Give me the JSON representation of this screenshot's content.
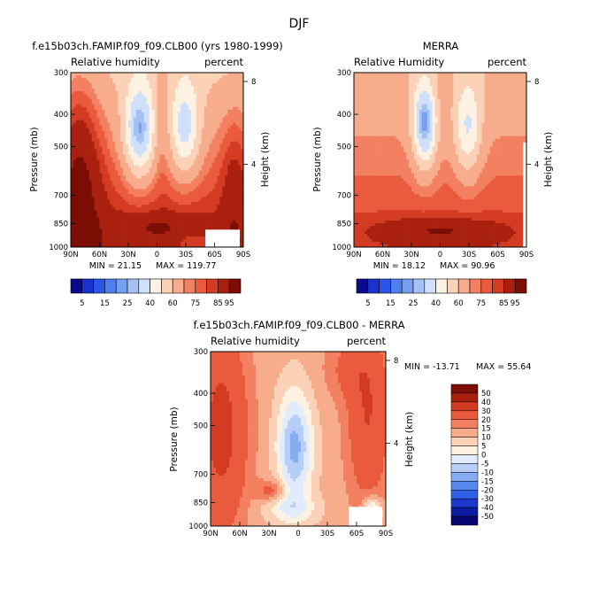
{
  "title": "DJF",
  "colors": {
    "abs_scale": [
      "#0a0a8c",
      "#1a33cc",
      "#2b55e6",
      "#4d7fee",
      "#779ff0",
      "#a5c1f4",
      "#cfe0fb",
      "#fdf1e2",
      "#fbd2b8",
      "#f7ad8c",
      "#f28061",
      "#ea5a3c",
      "#d33b22",
      "#a9210e",
      "#7b0d05"
    ],
    "diff_scale": [
      "#06066e",
      "#0d1da0",
      "#1c3acc",
      "#3160e6",
      "#5789ee",
      "#86adf3",
      "#b7cff8",
      "#e1ebfc",
      "#fdf1e2",
      "#fbd2b8",
      "#f7ad8c",
      "#f28061",
      "#ea5a3c",
      "#d33b22",
      "#a9210e",
      "#7b0d05"
    ]
  },
  "chart_data": [
    {
      "type": "heatmap",
      "title": "f.e15b03ch.FAMIP.f09_f09.CLB00 (yrs 1980-1999)",
      "subtitle_left": "Relative humidity",
      "subtitle_right": "percent",
      "xlabel": "",
      "ylabel": "Pressure (mb)",
      "ylabel_right": "Height (km)",
      "x_ticks": [
        "90N",
        "60N",
        "30N",
        "0",
        "30S",
        "60S",
        "90S"
      ],
      "y_ticks": [
        "300",
        "400",
        "500",
        "700",
        "850",
        "1000"
      ],
      "y_right_ticks": [
        "8",
        "4"
      ],
      "min_label": "MIN = 21.15",
      "max_label": "MAX = 119.77",
      "min": 21.15,
      "max": 119.77,
      "colorbar_levels": [
        "5",
        "15",
        "25",
        "40",
        "60",
        "75",
        "85",
        "95"
      ]
    },
    {
      "type": "heatmap",
      "title": "MERRA",
      "subtitle_left": "Relative Humidity",
      "subtitle_right": "percent",
      "xlabel": "",
      "ylabel": "Pressure (mb)",
      "ylabel_right": "Height (km)",
      "x_ticks": [
        "90N",
        "60N",
        "30N",
        "0",
        "30S",
        "60S",
        "90S"
      ],
      "y_ticks": [
        "300",
        "400",
        "500",
        "700",
        "850",
        "1000"
      ],
      "y_right_ticks": [
        "8",
        "4"
      ],
      "min_label": "MIN = 18.12",
      "max_label": "MAX = 90.96",
      "min": 18.12,
      "max": 90.96,
      "colorbar_levels": [
        "5",
        "15",
        "25",
        "40",
        "60",
        "75",
        "85",
        "95"
      ]
    },
    {
      "type": "heatmap",
      "title": "f.e15b03ch.FAMIP.f09_f09.CLB00 - MERRA",
      "subtitle_left": "Relative humidity",
      "subtitle_right": "percent",
      "xlabel": "",
      "ylabel": "Pressure (mb)",
      "ylabel_right": "Height (km)",
      "x_ticks": [
        "90N",
        "60N",
        "30N",
        "0",
        "30S",
        "60S",
        "90S"
      ],
      "y_ticks": [
        "300",
        "400",
        "500",
        "700",
        "850",
        "1000"
      ],
      "y_right_ticks": [
        "8",
        "4"
      ],
      "min_label": "MIN = -13.71",
      "max_label": "MAX = 55.64",
      "min": -13.71,
      "max": 55.64,
      "colorbar_levels": [
        "50",
        "40",
        "30",
        "20",
        "15",
        "10",
        "5",
        "0",
        "-5",
        "-10",
        "-15",
        "-20",
        "-30",
        "-40",
        "-50"
      ]
    }
  ]
}
